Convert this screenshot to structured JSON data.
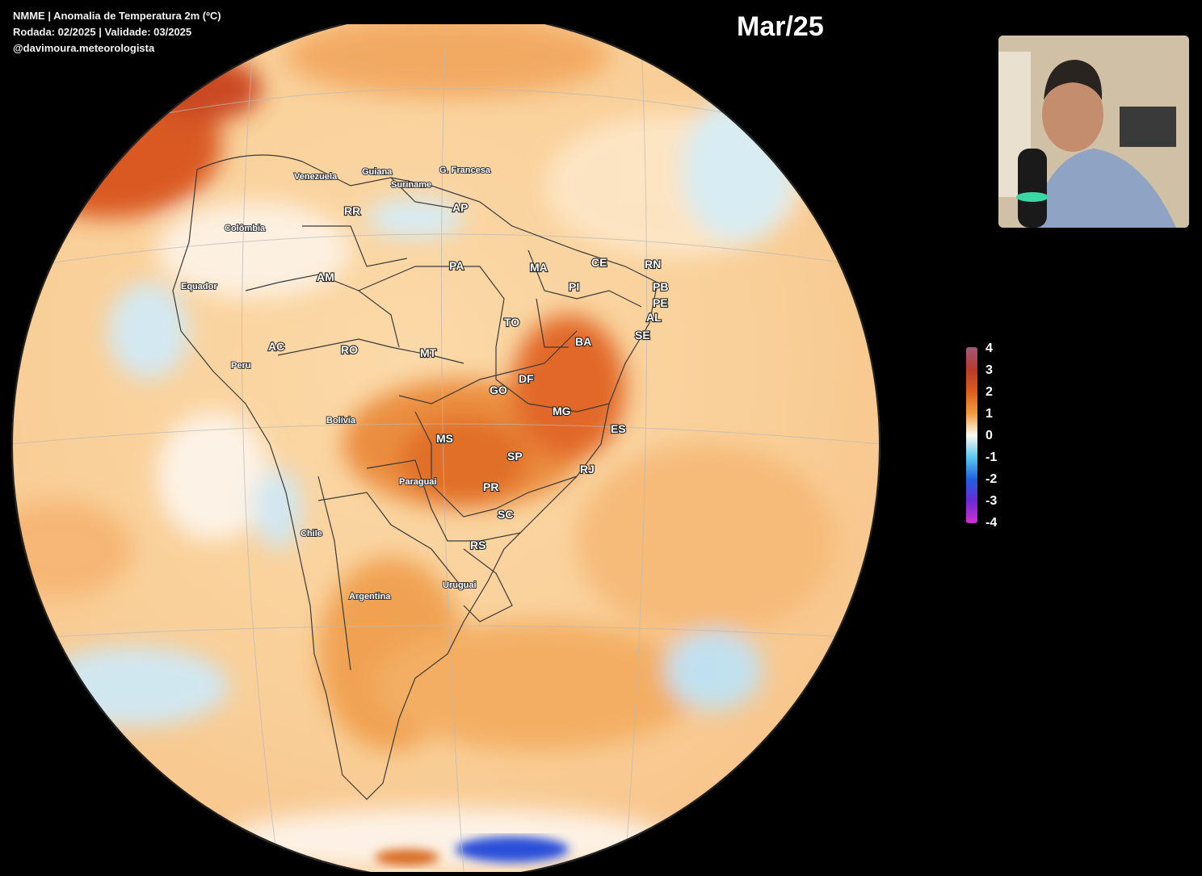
{
  "header": {
    "line1": "NMME | Anomalia de Temperatura 2m (ºC)",
    "line2": "Rodada: 02/2025 | Validade: 03/2025",
    "line3": "@davimoura.meteorologista"
  },
  "period": "Mar/25",
  "legend": {
    "ticks": [
      "4",
      "3",
      "2",
      "1",
      "0",
      "-1",
      "-2",
      "-3",
      "-4"
    ],
    "colors": {
      "warm_max": "#a05a7a",
      "warm": "#dd5a1c",
      "neutral": "#fffaf0",
      "cold": "#2060e0",
      "cold_min": "#d030d0"
    }
  },
  "map_labels": {
    "countries": [
      "Venezuela",
      "Guiana",
      "Suriname",
      "G. Francesa",
      "Colômbia",
      "Equador",
      "Peru",
      "Bolívia",
      "Paraguai",
      "Chile",
      "Argentina",
      "Uruguai"
    ],
    "states": [
      "RR",
      "AP",
      "AM",
      "PA",
      "MA",
      "CE",
      "RN",
      "PB",
      "PE",
      "AL",
      "SE",
      "PI",
      "TO",
      "BA",
      "AC",
      "RO",
      "MT",
      "GO",
      "DF",
      "MG",
      "ES",
      "MS",
      "SP",
      "RJ",
      "PR",
      "SC",
      "RS"
    ]
  },
  "webcam": {
    "icon": "person-webcam-icon"
  }
}
